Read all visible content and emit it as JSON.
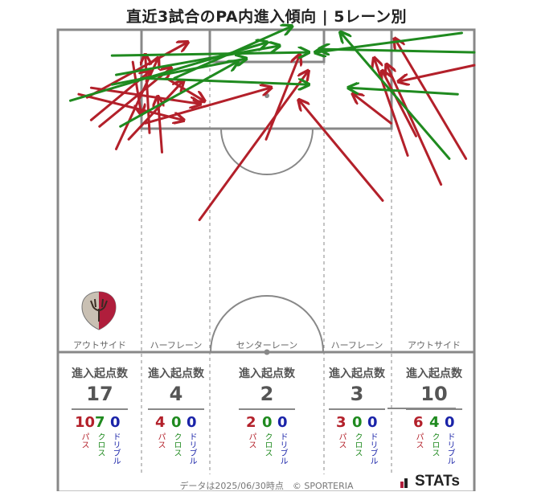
{
  "title": "直近3試合のPA内進入傾向 | 5レーン別",
  "colors": {
    "pass": "#b3202a",
    "cross": "#1f8a1f",
    "dribble": "#1a23a8",
    "lines": "#888888"
  },
  "lanes": [
    {
      "label": "アウトサイド",
      "header": "進入起点数",
      "total": "17",
      "pass": "10",
      "cross": "7",
      "dribble": "0"
    },
    {
      "label": "ハーフレーン",
      "header": "進入起点数",
      "total": "4",
      "pass": "4",
      "cross": "0",
      "dribble": "0"
    },
    {
      "label": "センターレーン",
      "header": "進入起点数",
      "total": "2",
      "pass": "2",
      "cross": "0",
      "dribble": "0"
    },
    {
      "label": "ハーフレーン",
      "header": "進入起点数",
      "total": "3",
      "pass": "3",
      "cross": "0",
      "dribble": "0"
    },
    {
      "label": "アウトサイド",
      "header": "進入起点数",
      "total": "10",
      "pass": "6",
      "cross": "4",
      "dribble": "0"
    }
  ],
  "type_labels": {
    "pass": "パス",
    "cross": "クロス",
    "dribble": "ドリブル"
  },
  "footer": "データは2025/06/30時点　© SPORTERIA",
  "brand": "STATs",
  "chart_data": {
    "type": "scatter",
    "title": "直近3試合のPA内進入傾向 | 5レーン別",
    "x_range": [
      0,
      100
    ],
    "y_range": [
      0,
      100
    ],
    "arrows": [
      {
        "kind": "pass",
        "from": [
          7,
          79
        ],
        "to": [
          31,
          96
        ]
      },
      {
        "kind": "pass",
        "from": [
          8,
          72
        ],
        "to": [
          22,
          87
        ]
      },
      {
        "kind": "pass",
        "from": [
          10,
          70
        ],
        "to": [
          27,
          88
        ]
      },
      {
        "kind": "pass",
        "from": [
          14,
          63
        ],
        "to": [
          24,
          91
        ]
      },
      {
        "kind": "pass",
        "from": [
          17,
          66
        ],
        "to": [
          30,
          84
        ]
      },
      {
        "kind": "pass",
        "from": [
          22,
          68
        ],
        "to": [
          21,
          92
        ]
      },
      {
        "kind": "pass",
        "from": [
          25,
          62
        ],
        "to": [
          24,
          79
        ]
      },
      {
        "kind": "pass",
        "from": [
          21,
          71
        ],
        "to": [
          51,
          82
        ]
      },
      {
        "kind": "pass",
        "from": [
          5,
          80
        ],
        "to": [
          30,
          72
        ]
      },
      {
        "kind": "pass",
        "from": [
          8,
          82
        ],
        "to": [
          34,
          77
        ]
      },
      {
        "kind": "pass",
        "from": [
          18,
          90
        ],
        "to": [
          20,
          74
        ]
      },
      {
        "kind": "pass",
        "from": [
          26,
          85
        ],
        "to": [
          35,
          78
        ]
      },
      {
        "kind": "pass",
        "from": [
          34,
          41
        ],
        "to": [
          60,
          87
        ]
      },
      {
        "kind": "pass",
        "from": [
          50,
          66
        ],
        "to": [
          58,
          92
        ]
      },
      {
        "kind": "pass",
        "from": [
          78,
          47
        ],
        "to": [
          58,
          78
        ]
      },
      {
        "kind": "pass",
        "from": [
          80,
          71
        ],
        "to": [
          71,
          80
        ]
      },
      {
        "kind": "pass",
        "from": [
          84,
          61
        ],
        "to": [
          76,
          91
        ]
      },
      {
        "kind": "pass",
        "from": [
          86,
          67
        ],
        "to": [
          78,
          87
        ]
      },
      {
        "kind": "pass",
        "from": [
          92,
          52
        ],
        "to": [
          79,
          89
        ]
      },
      {
        "kind": "pass",
        "from": [
          98,
          60
        ],
        "to": [
          81,
          97
        ]
      },
      {
        "kind": "pass",
        "from": [
          100,
          89
        ],
        "to": [
          82,
          84
        ]
      },
      {
        "kind": "cross",
        "from": [
          3,
          78
        ],
        "to": [
          50,
          96
        ]
      },
      {
        "kind": "cross",
        "from": [
          13,
          83
        ],
        "to": [
          45,
          91
        ]
      },
      {
        "kind": "cross",
        "from": [
          13,
          92
        ],
        "to": [
          60,
          93
        ]
      },
      {
        "kind": "cross",
        "from": [
          14,
          86
        ],
        "to": [
          53,
          95
        ]
      },
      {
        "kind": "cross",
        "from": [
          15,
          70
        ],
        "to": [
          43,
          90
        ]
      },
      {
        "kind": "cross",
        "from": [
          20,
          85
        ],
        "to": [
          60,
          83
        ]
      },
      {
        "kind": "cross",
        "from": [
          28,
          85
        ],
        "to": [
          56,
          101
        ]
      },
      {
        "kind": "cross",
        "from": [
          97,
          99
        ],
        "to": [
          62,
          93
        ]
      },
      {
        "kind": "cross",
        "from": [
          100,
          93
        ],
        "to": [
          63,
          94
        ]
      },
      {
        "kind": "cross",
        "from": [
          96,
          80
        ],
        "to": [
          70,
          82
        ]
      },
      {
        "kind": "cross",
        "from": [
          94,
          60
        ],
        "to": [
          68,
          99
        ]
      }
    ]
  }
}
